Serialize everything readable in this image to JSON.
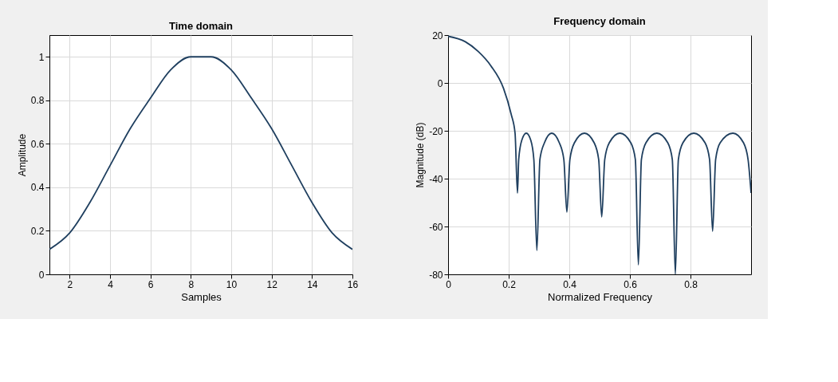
{
  "chart_data": [
    {
      "type": "line",
      "title": "Time domain",
      "xlabel": "Samples",
      "ylabel": "Amplitude",
      "x": [
        1,
        2,
        3,
        4,
        5,
        6,
        7,
        8,
        9,
        10,
        11,
        12,
        13,
        14,
        15,
        16
      ],
      "series": [
        {
          "color": "#1f3f5f",
          "values": [
            0.115,
            0.19,
            0.33,
            0.5,
            0.67,
            0.81,
            0.94,
            1,
            1,
            0.94,
            0.81,
            0.67,
            0.5,
            0.33,
            0.19,
            0.115
          ]
        }
      ],
      "xlim": [
        1,
        16
      ],
      "xticks": [
        2,
        4,
        6,
        8,
        10,
        12,
        14,
        16
      ],
      "ylim": [
        0,
        1.1
      ],
      "yticks": [
        0,
        0.2,
        0.4,
        0.6,
        0.8,
        1
      ],
      "grid": true,
      "marker": "none",
      "line_style": "solid"
    },
    {
      "type": "line",
      "title": "Frequency domain",
      "xlabel": "Normalized Frequency",
      "ylabel": "Magnitude (dB)",
      "x": [
        0,
        0.057,
        0.099,
        0.141,
        0.183,
        0.208,
        0.221,
        0.229,
        0.233,
        0.243,
        0.258,
        0.273,
        0.283,
        0.293,
        0.303,
        0.318,
        0.342,
        0.367,
        0.382,
        0.392,
        0.402,
        0.417,
        0.45,
        0.482,
        0.497,
        0.507,
        0.517,
        0.532,
        0.567,
        0.603,
        0.618,
        0.628,
        0.638,
        0.653,
        0.689,
        0.725,
        0.74,
        0.75,
        0.76,
        0.775,
        0.811,
        0.848,
        0.863,
        0.873,
        0.883,
        0.898,
        0.94,
        0.975,
        0.99,
        1.0
      ],
      "series": [
        {
          "color": "#1f3f5f",
          "values": [
            19.5,
            17.2,
            13.2,
            7.2,
            -2.3,
            -13,
            -21,
            -46,
            -32,
            -24,
            -21,
            -24,
            -32,
            -70,
            -32,
            -25,
            -21,
            -25,
            -32,
            -54,
            -32,
            -25,
            -21,
            -25,
            -32,
            -56,
            -32,
            -25,
            -21,
            -25,
            -32,
            -76,
            -32,
            -25,
            -21,
            -25,
            -32,
            -80,
            -32,
            -25,
            -21,
            -25,
            -32,
            -62,
            -32,
            -25,
            -21,
            -25,
            -32,
            -46
          ]
        }
      ],
      "xlim": [
        0,
        1
      ],
      "xticks": [
        0,
        0.2,
        0.4,
        0.6,
        0.8
      ],
      "ylim": [
        -80,
        20
      ],
      "yticks": [
        -80,
        -60,
        -40,
        -20,
        0,
        20
      ],
      "grid": true,
      "marker": "none",
      "line_style": "solid"
    }
  ]
}
